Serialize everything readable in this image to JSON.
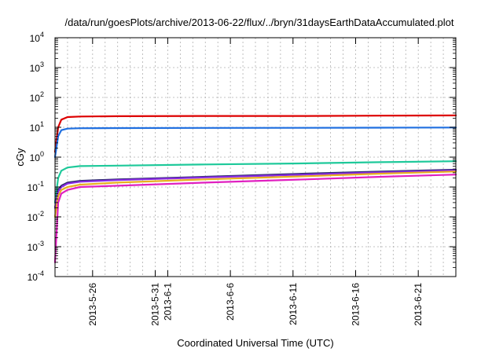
{
  "chart_data": {
    "type": "line",
    "title": "/data/run/goesPlots/archive/2013-06-22/flux/../bryn/31daysEarthDataAccumulated.plot",
    "xlabel": "Coordinated Universal Time (UTC)",
    "ylabel": "cGy",
    "y_scale": "log",
    "ylim": [
      0.0001,
      10000
    ],
    "xlim": [
      "2013-05-23",
      "2013-06-24"
    ],
    "grid": true,
    "legend": "none",
    "x_ticks": [
      "2013-5-26",
      "2013-5-31",
      "2013-6-1",
      "2013-6-6",
      "2013-6-11",
      "2013-6-16",
      "2013-6-21"
    ],
    "y_ticks": [
      {
        "value": 0.0001,
        "base": "10",
        "exp": "-4"
      },
      {
        "value": 0.001,
        "base": "10",
        "exp": "-3"
      },
      {
        "value": 0.01,
        "base": "10",
        "exp": "-2"
      },
      {
        "value": 0.1,
        "base": "10",
        "exp": "-1"
      },
      {
        "value": 1,
        "base": "10",
        "exp": "0"
      },
      {
        "value": 10,
        "base": "10",
        "exp": "1"
      },
      {
        "value": 100,
        "base": "10",
        "exp": "2"
      },
      {
        "value": 1000,
        "base": "10",
        "exp": "3"
      },
      {
        "value": 10000,
        "base": "10",
        "exp": "4"
      }
    ],
    "x": [
      "2013-05-23",
      "2013-05-23T06",
      "2013-05-23T12",
      "2013-05-24",
      "2013-05-25",
      "2013-05-28",
      "2013-06-04",
      "2013-06-12",
      "2013-06-18",
      "2013-06-24"
    ],
    "series": [
      {
        "color": "#dd0000",
        "values": [
          1.5,
          10,
          18,
          22,
          23,
          23.5,
          24,
          24,
          24.5,
          25
        ]
      },
      {
        "color": "#1f6fe0",
        "values": [
          1,
          5,
          8,
          9,
          9.3,
          9.4,
          9.5,
          9.6,
          9.7,
          9.8
        ]
      },
      {
        "color": "#1ec99a",
        "values": [
          0.03,
          0.2,
          0.35,
          0.45,
          0.5,
          0.52,
          0.57,
          0.62,
          0.68,
          0.73
        ]
      },
      {
        "color": "#2a2a6a",
        "values": [
          0.02,
          0.08,
          0.11,
          0.14,
          0.16,
          0.18,
          0.22,
          0.28,
          0.33,
          0.38
        ]
      },
      {
        "color": "#8a2be2",
        "values": [
          0.02,
          0.07,
          0.1,
          0.13,
          0.15,
          0.17,
          0.21,
          0.26,
          0.31,
          0.36
        ]
      },
      {
        "color": "#e8b020",
        "values": [
          0.01,
          0.05,
          0.08,
          0.1,
          0.12,
          0.14,
          0.18,
          0.23,
          0.28,
          0.33
        ]
      },
      {
        "color": "#e020c0",
        "values": [
          0.0003,
          0.03,
          0.06,
          0.08,
          0.1,
          0.11,
          0.14,
          0.18,
          0.22,
          0.26
        ]
      }
    ]
  }
}
